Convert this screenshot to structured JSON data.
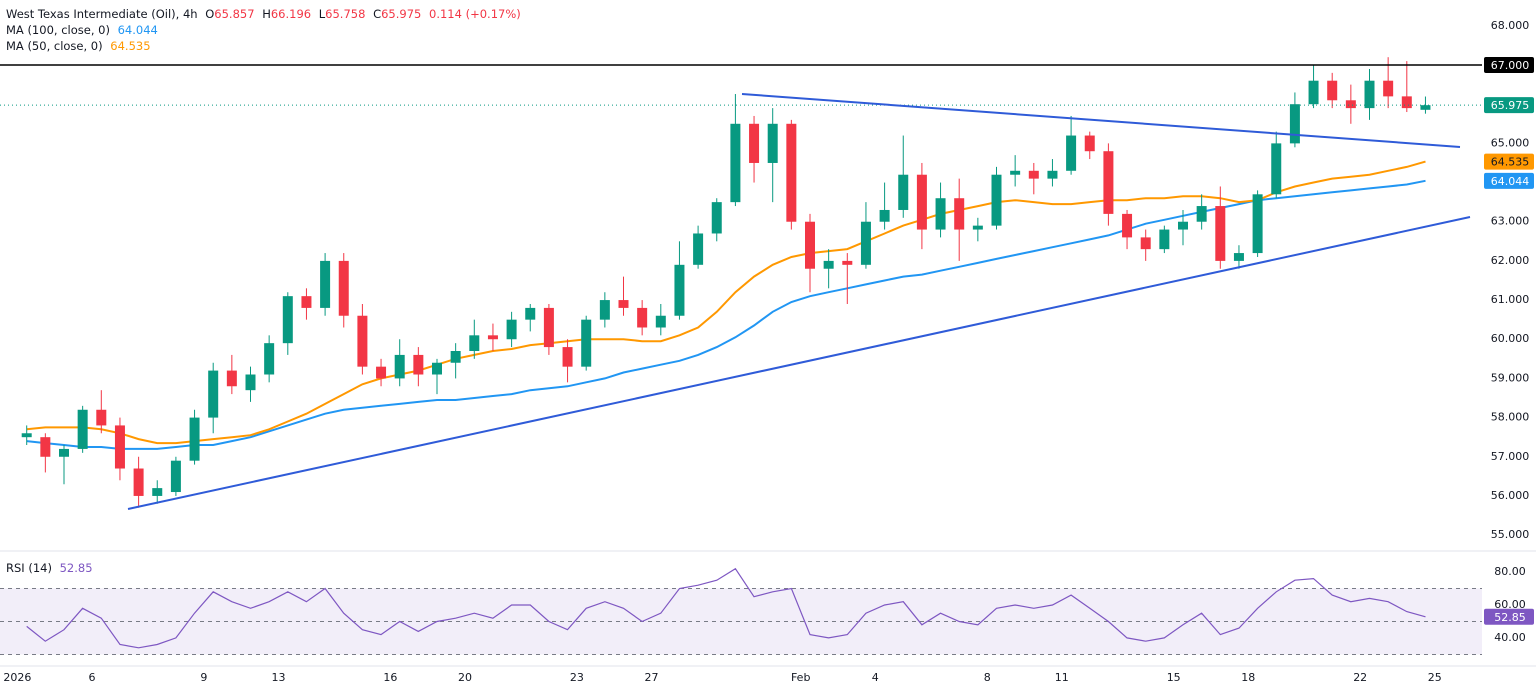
{
  "chart_data": [
    {
      "type": "candlestick",
      "title": "West Texas Intermediate (Oil), 4h",
      "ohlc_legend": [
        {
          "label": "O",
          "value": 65.857
        },
        {
          "label": "H",
          "value": 66.196
        },
        {
          "label": "L",
          "value": 65.758
        },
        {
          "label": "C",
          "value": 65.975
        }
      ],
      "change": "0.114 (+0.17%)",
      "colors": {
        "up": "#089981",
        "down": "#f23645"
      },
      "ohlc": [
        [
          57.5,
          57.8,
          57.3,
          57.6
        ],
        [
          57.5,
          57.6,
          56.6,
          57.0
        ],
        [
          57.0,
          57.3,
          56.3,
          57.2
        ],
        [
          57.2,
          58.3,
          57.1,
          58.2
        ],
        [
          58.2,
          58.7,
          57.6,
          57.8
        ],
        [
          57.8,
          58.0,
          56.4,
          56.7
        ],
        [
          56.7,
          57.0,
          55.7,
          56.0
        ],
        [
          56.0,
          56.4,
          55.8,
          56.2
        ],
        [
          56.1,
          57.0,
          56.0,
          56.9
        ],
        [
          56.9,
          58.2,
          56.8,
          58.0
        ],
        [
          58.0,
          59.4,
          57.6,
          59.2
        ],
        [
          59.2,
          59.6,
          58.6,
          58.8
        ],
        [
          58.7,
          59.3,
          58.4,
          59.1
        ],
        [
          59.1,
          60.1,
          58.9,
          59.9
        ],
        [
          59.9,
          61.2,
          59.6,
          61.1
        ],
        [
          61.1,
          61.3,
          60.5,
          60.8
        ],
        [
          60.8,
          62.2,
          60.6,
          62.0
        ],
        [
          62.0,
          62.2,
          60.3,
          60.6
        ],
        [
          60.6,
          60.9,
          59.1,
          59.3
        ],
        [
          59.3,
          59.5,
          58.8,
          59.0
        ],
        [
          59.0,
          60.0,
          58.8,
          59.6
        ],
        [
          59.6,
          59.8,
          58.8,
          59.1
        ],
        [
          59.1,
          59.5,
          58.6,
          59.4
        ],
        [
          59.4,
          59.9,
          59.0,
          59.7
        ],
        [
          59.7,
          60.5,
          59.5,
          60.1
        ],
        [
          60.1,
          60.4,
          59.7,
          60.0
        ],
        [
          60.0,
          60.7,
          59.8,
          60.5
        ],
        [
          60.5,
          60.9,
          60.2,
          60.8
        ],
        [
          60.8,
          60.9,
          59.6,
          59.8
        ],
        [
          59.8,
          60.0,
          58.9,
          59.3
        ],
        [
          59.3,
          60.6,
          59.2,
          60.5
        ],
        [
          60.5,
          61.2,
          60.3,
          61.0
        ],
        [
          61.0,
          61.6,
          60.6,
          60.8
        ],
        [
          60.8,
          61.0,
          60.1,
          60.3
        ],
        [
          60.3,
          60.9,
          60.1,
          60.6
        ],
        [
          60.6,
          62.5,
          60.5,
          61.9
        ],
        [
          61.9,
          62.9,
          61.8,
          62.7
        ],
        [
          62.7,
          63.6,
          62.5,
          63.5
        ],
        [
          63.5,
          66.26,
          63.4,
          65.5
        ],
        [
          65.5,
          65.7,
          64.0,
          64.5
        ],
        [
          64.5,
          65.9,
          63.5,
          65.5
        ],
        [
          65.5,
          65.6,
          62.8,
          63.0
        ],
        [
          63.0,
          63.2,
          61.2,
          61.8
        ],
        [
          61.8,
          62.3,
          61.3,
          62.0
        ],
        [
          62.0,
          62.2,
          60.9,
          61.9
        ],
        [
          61.9,
          63.5,
          61.8,
          63.0
        ],
        [
          63.0,
          64.0,
          62.8,
          63.3
        ],
        [
          63.3,
          65.2,
          63.1,
          64.2
        ],
        [
          64.2,
          64.5,
          62.3,
          62.8
        ],
        [
          62.8,
          64.0,
          62.6,
          63.6
        ],
        [
          63.6,
          64.1,
          62.0,
          62.8
        ],
        [
          62.8,
          63.1,
          62.5,
          62.9
        ],
        [
          62.9,
          64.4,
          62.8,
          64.2
        ],
        [
          64.2,
          64.7,
          63.9,
          64.3
        ],
        [
          64.3,
          64.5,
          63.7,
          64.1
        ],
        [
          64.1,
          64.6,
          63.9,
          64.3
        ],
        [
          64.3,
          65.7,
          64.2,
          65.2
        ],
        [
          65.2,
          65.3,
          64.6,
          64.8
        ],
        [
          64.8,
          65.0,
          62.9,
          63.2
        ],
        [
          63.2,
          63.3,
          62.3,
          62.6
        ],
        [
          62.6,
          62.8,
          62.0,
          62.3
        ],
        [
          62.3,
          62.9,
          62.2,
          62.8
        ],
        [
          62.8,
          63.3,
          62.4,
          63.0
        ],
        [
          63.0,
          63.7,
          62.8,
          63.4
        ],
        [
          63.4,
          63.9,
          61.8,
          62.0
        ],
        [
          62.0,
          62.4,
          61.8,
          62.2
        ],
        [
          62.2,
          63.8,
          62.1,
          63.7
        ],
        [
          63.7,
          65.3,
          63.6,
          65.0
        ],
        [
          65.0,
          66.3,
          64.9,
          66.0
        ],
        [
          66.0,
          67.0,
          65.9,
          66.6
        ],
        [
          66.6,
          66.8,
          65.9,
          66.1
        ],
        [
          66.1,
          66.5,
          65.5,
          65.9
        ],
        [
          65.9,
          66.9,
          65.6,
          66.6
        ],
        [
          66.6,
          67.2,
          65.9,
          66.2
        ],
        [
          66.2,
          67.1,
          65.8,
          65.9
        ],
        [
          65.857,
          66.196,
          65.758,
          65.975
        ],
        null
      ],
      "series": [
        {
          "name": "MA (100, close, 0)",
          "color": "#2196f3",
          "values": [
            57.4,
            57.35,
            57.3,
            57.25,
            57.25,
            57.2,
            57.2,
            57.2,
            57.25,
            57.3,
            57.3,
            57.4,
            57.5,
            57.65,
            57.8,
            57.95,
            58.1,
            58.2,
            58.25,
            58.3,
            58.35,
            58.4,
            58.45,
            58.45,
            58.5,
            58.55,
            58.6,
            58.7,
            58.75,
            58.8,
            58.9,
            59.0,
            59.15,
            59.25,
            59.35,
            59.45,
            59.6,
            59.8,
            60.05,
            60.35,
            60.7,
            60.95,
            61.1,
            61.2,
            61.3,
            61.4,
            61.5,
            61.6,
            61.65,
            61.75,
            61.85,
            61.95,
            62.05,
            62.15,
            62.25,
            62.35,
            62.45,
            62.55,
            62.65,
            62.8,
            62.95,
            63.05,
            63.15,
            63.25,
            63.35,
            63.45,
            63.55,
            63.6,
            63.65,
            63.7,
            63.75,
            63.8,
            63.85,
            63.9,
            63.95,
            64.044,
            null
          ]
        },
        {
          "name": "MA (50, close, 0)",
          "color": "#ff9800",
          "values": [
            57.7,
            57.75,
            57.75,
            57.75,
            57.7,
            57.6,
            57.45,
            57.35,
            57.35,
            57.4,
            57.45,
            57.5,
            57.55,
            57.7,
            57.9,
            58.1,
            58.35,
            58.6,
            58.85,
            59.0,
            59.1,
            59.2,
            59.35,
            59.5,
            59.6,
            59.7,
            59.75,
            59.85,
            59.9,
            59.95,
            60.0,
            60.0,
            60.0,
            59.95,
            59.95,
            60.1,
            60.3,
            60.7,
            61.2,
            61.6,
            61.9,
            62.1,
            62.2,
            62.25,
            62.3,
            62.5,
            62.7,
            62.9,
            63.05,
            63.2,
            63.3,
            63.4,
            63.5,
            63.55,
            63.5,
            63.45,
            63.45,
            63.5,
            63.55,
            63.55,
            63.6,
            63.6,
            63.65,
            63.65,
            63.6,
            63.5,
            63.55,
            63.75,
            63.9,
            64.0,
            64.1,
            64.15,
            64.2,
            64.3,
            64.4,
            64.535,
            null
          ]
        }
      ],
      "levels": [
        {
          "value": 67,
          "label": "67.000",
          "color": "#000000"
        }
      ],
      "ylim": [
        54.62,
        68.66
      ],
      "yticks": [
        {
          "value": 68,
          "label": "68.000"
        },
        {
          "value": 67,
          "label": "67.000"
        },
        {
          "value": 66,
          "label": "66.000"
        },
        {
          "value": 65,
          "label": "65.000"
        },
        {
          "value": 64,
          "label": "64.000"
        },
        {
          "value": 63,
          "label": "63.000"
        },
        {
          "value": 62,
          "label": "62.000"
        },
        {
          "value": 61,
          "label": "61.000"
        },
        {
          "value": 60,
          "label": "60.000"
        },
        {
          "value": 59,
          "label": "59.000"
        },
        {
          "value": 58,
          "label": "58.000"
        },
        {
          "value": 57,
          "label": "57.000"
        },
        {
          "value": 56,
          "label": "56.000"
        },
        {
          "value": 55,
          "label": "55.000"
        }
      ],
      "grid": false
    },
    {
      "type": "line",
      "categories": [
        "2026",
        null,
        null,
        null,
        "6",
        null,
        null,
        null,
        null,
        null,
        "9",
        null,
        null,
        null,
        "13",
        null,
        null,
        null,
        null,
        null,
        "16",
        null,
        null,
        null,
        "20",
        null,
        null,
        null,
        null,
        null,
        "23",
        null,
        null,
        null,
        "27",
        null,
        null,
        null,
        null,
        null,
        null,
        null,
        "Feb",
        null,
        null,
        null,
        "4",
        null,
        null,
        null,
        null,
        null,
        "8",
        null,
        null,
        null,
        "11",
        null,
        null,
        null,
        null,
        null,
        "15",
        null,
        null,
        null,
        "18",
        null,
        null,
        null,
        null,
        null,
        "22",
        null,
        null,
        null,
        "25"
      ],
      "series": [
        {
          "name": "RSI (14)",
          "color": "#7e57c2",
          "values": [
            47,
            38,
            45,
            58,
            52,
            36,
            34,
            36,
            40,
            55,
            68,
            62,
            58,
            62,
            68,
            62,
            70,
            55,
            45,
            42,
            50,
            44,
            50,
            52,
            55,
            52,
            60,
            60,
            50,
            45,
            58,
            62,
            58,
            50,
            55,
            70,
            72,
            75,
            82,
            65,
            68,
            70,
            42,
            40,
            42,
            55,
            60,
            62,
            48,
            55,
            50,
            48,
            58,
            60,
            58,
            60,
            66,
            58,
            50,
            40,
            38,
            40,
            48,
            55,
            42,
            46,
            58,
            68,
            75,
            76,
            66,
            62,
            64,
            62,
            56,
            52.85,
            null
          ]
        }
      ],
      "band": [
        30,
        70
      ],
      "midline": 50,
      "ylim": [
        23.6,
        91.5
      ],
      "yticks": [
        {
          "value": 80,
          "label": "80.00"
        },
        {
          "value": 60,
          "label": "60.00"
        },
        {
          "value": 40,
          "label": "40.00"
        }
      ],
      "grid": false
    }
  ]
}
